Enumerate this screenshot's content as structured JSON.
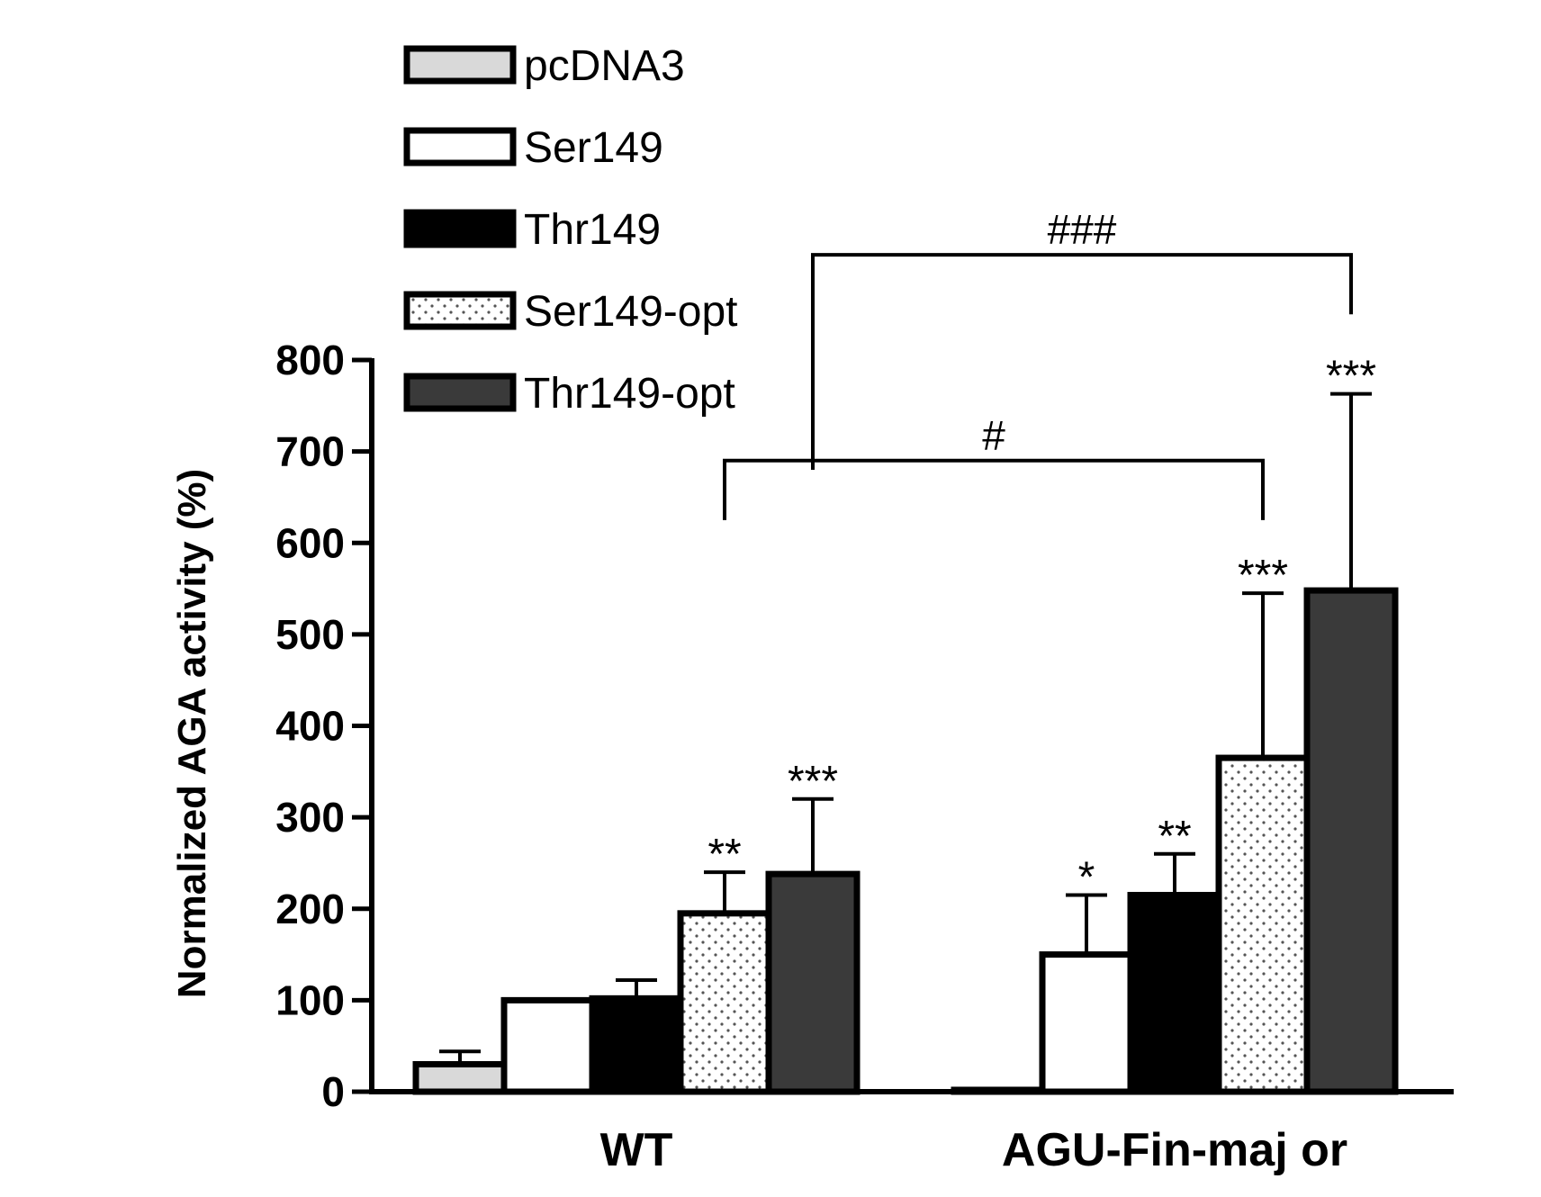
{
  "chart_data": {
    "type": "bar",
    "title": "",
    "ylabel": "Normalized AGA activity (%)",
    "xlabel": "",
    "ylim": [
      0,
      800
    ],
    "yticks": [
      0,
      100,
      200,
      300,
      400,
      500,
      600,
      700,
      800
    ],
    "categories": [
      "WT",
      "AGU-Fin-maj or"
    ],
    "legend_position": "top-left",
    "series": [
      {
        "name": "pcDNA3",
        "fill": "#d9d9d9",
        "pattern": "solid",
        "values": [
          30,
          2
        ],
        "errors": [
          14,
          0
        ],
        "sig": [
          "",
          ""
        ]
      },
      {
        "name": "Ser149",
        "fill": "#ffffff",
        "pattern": "solid",
        "values": [
          100,
          150
        ],
        "errors": [
          0,
          65
        ],
        "sig": [
          "",
          "*"
        ]
      },
      {
        "name": "Thr149",
        "fill": "#000000",
        "pattern": "solid",
        "values": [
          102,
          215
        ],
        "errors": [
          20,
          45
        ],
        "sig": [
          "",
          "**"
        ]
      },
      {
        "name": "Ser149-opt",
        "fill": "#ffffff",
        "pattern": "dots",
        "values": [
          195,
          365
        ],
        "errors": [
          45,
          180
        ],
        "sig": [
          "**",
          "***"
        ]
      },
      {
        "name": "Thr149-opt",
        "fill": "#3a3a3a",
        "pattern": "solid",
        "values": [
          238,
          548
        ],
        "errors": [
          82,
          215
        ],
        "sig": [
          "***",
          "***"
        ]
      }
    ],
    "comparisons": [
      {
        "label": "#",
        "from": {
          "category": 0,
          "series": 3
        },
        "to": {
          "category": 1,
          "series": 3
        },
        "level": 690
      },
      {
        "label": "###",
        "from": {
          "category": 0,
          "series": 4
        },
        "to": {
          "category": 1,
          "series": 4
        },
        "level": 915
      }
    ]
  }
}
